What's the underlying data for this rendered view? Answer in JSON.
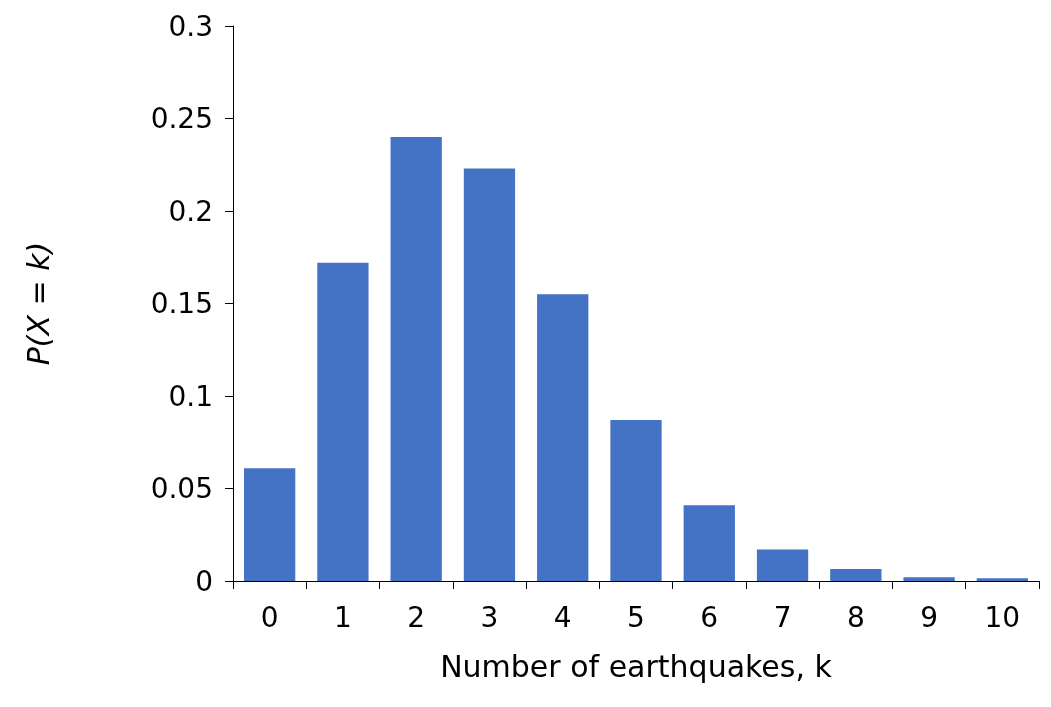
{
  "chart_data": {
    "type": "bar",
    "xlabel": "Number of earthquakes, k",
    "ylabel": "P(X = k)",
    "categories": [
      "0",
      "1",
      "2",
      "3",
      "4",
      "5",
      "6",
      "7",
      "8",
      "9",
      "10"
    ],
    "values": [
      0.061,
      0.172,
      0.24,
      0.223,
      0.155,
      0.087,
      0.041,
      0.017,
      0.0065,
      0.002,
      0.0015
    ],
    "color": "#4472c4",
    "ylim": [
      0,
      0.3
    ],
    "yticks": [
      0,
      0.05,
      0.1,
      0.15,
      0.2,
      0.25,
      0.3
    ],
    "grid": false
  }
}
